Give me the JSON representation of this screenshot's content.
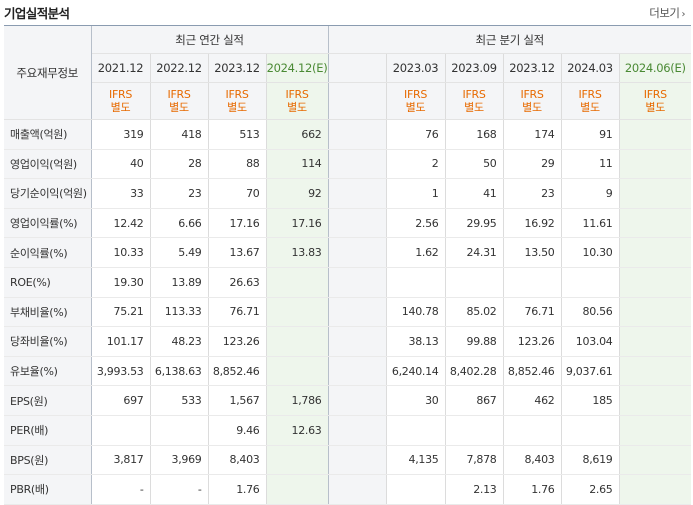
{
  "header": {
    "title": "기업실적분석",
    "more": "더보기"
  },
  "table": {
    "corner": "주요재무정보",
    "groups": {
      "annual": "최근 연간 실적",
      "quarter": "최근 분기 실적"
    },
    "annual_dates": [
      "2021.12",
      "2022.12",
      "2023.12",
      "2024.12(E)"
    ],
    "quarter_dates": [
      "2023.03",
      "2023.09",
      "2023.12",
      "2024.03",
      "2024.06(E)"
    ],
    "ifrs": {
      "top": "IFRS",
      "bottom": "별도"
    },
    "rows": [
      {
        "label": "매출액(억원)",
        "annual": [
          "319",
          "418",
          "513",
          "662"
        ],
        "quarter": [
          "76",
          "168",
          "174",
          "91",
          ""
        ]
      },
      {
        "label": "영업이익(억원)",
        "annual": [
          "40",
          "28",
          "88",
          "114"
        ],
        "quarter": [
          "2",
          "50",
          "29",
          "11",
          ""
        ]
      },
      {
        "label": "당기순이익(억원)",
        "annual": [
          "33",
          "23",
          "70",
          "92"
        ],
        "quarter": [
          "1",
          "41",
          "23",
          "9",
          ""
        ]
      },
      {
        "label": "영업이익률(%)",
        "annual": [
          "12.42",
          "6.66",
          "17.16",
          "17.16"
        ],
        "quarter": [
          "2.56",
          "29.95",
          "16.92",
          "11.61",
          ""
        ]
      },
      {
        "label": "순이익률(%)",
        "annual": [
          "10.33",
          "5.49",
          "13.67",
          "13.83"
        ],
        "quarter": [
          "1.62",
          "24.31",
          "13.50",
          "10.30",
          ""
        ]
      },
      {
        "label": "ROE(%)",
        "annual": [
          "19.30",
          "13.89",
          "26.63",
          ""
        ],
        "quarter": [
          "",
          "",
          "",
          "",
          ""
        ]
      },
      {
        "label": "부채비율(%)",
        "annual": [
          "75.21",
          "113.33",
          "76.71",
          ""
        ],
        "quarter": [
          "140.78",
          "85.02",
          "76.71",
          "80.56",
          ""
        ]
      },
      {
        "label": "당좌비율(%)",
        "annual": [
          "101.17",
          "48.23",
          "123.26",
          ""
        ],
        "quarter": [
          "38.13",
          "99.88",
          "123.26",
          "103.04",
          ""
        ]
      },
      {
        "label": "유보율(%)",
        "annual": [
          "3,993.53",
          "6,138.63",
          "8,852.46",
          ""
        ],
        "quarter": [
          "6,240.14",
          "8,402.28",
          "8,852.46",
          "9,037.61",
          ""
        ]
      },
      {
        "label": "EPS(원)",
        "annual": [
          "697",
          "533",
          "1,567",
          "1,786"
        ],
        "quarter": [
          "30",
          "867",
          "462",
          "185",
          ""
        ]
      },
      {
        "label": "PER(배)",
        "annual": [
          "",
          "",
          "9.46",
          "12.63"
        ],
        "quarter": [
          "",
          "",
          "",
          "",
          ""
        ]
      },
      {
        "label": "BPS(원)",
        "annual": [
          "3,817",
          "3,969",
          "8,403",
          ""
        ],
        "quarter": [
          "4,135",
          "7,878",
          "8,403",
          "8,619",
          ""
        ]
      },
      {
        "label": "PBR(배)",
        "annual": [
          "-",
          "-",
          "1.76",
          ""
        ],
        "quarter": [
          "",
          "2.13",
          "1.76",
          "2.65",
          ""
        ]
      }
    ]
  }
}
